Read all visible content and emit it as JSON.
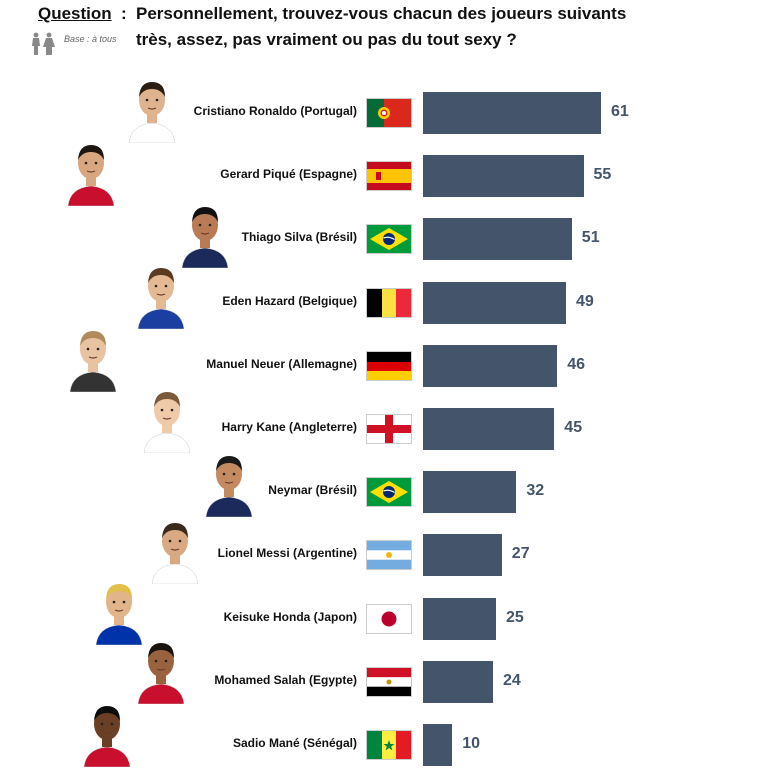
{
  "header": {
    "question_label": "Question",
    "colon": ":",
    "question_line1": "Personnellement, trouvez-vous chacun des joueurs suivants",
    "question_line2": "très, assez, pas vraiment ou pas du tout sexy ?",
    "base_label": "Base : à tous",
    "base_icon": "man-woman-icon"
  },
  "chart_data": {
    "type": "bar",
    "orientation": "horizontal",
    "categories": [
      "Cristiano Ronaldo (Portugal)",
      "Gerard Piqué (Espagne)",
      "Thiago Silva (Brésil)",
      "Eden Hazard (Belgique)",
      "Manuel Neuer (Allemagne)",
      "Harry Kane (Angleterre)",
      "Neymar (Brésil)",
      "Lionel Messi (Argentine)",
      "Keisuke Honda (Japon)",
      "Mohamed Salah (Egypte)",
      "Sadio Mané (Sénégal)"
    ],
    "values": [
      61,
      55,
      51,
      49,
      46,
      45,
      32,
      27,
      25,
      24,
      10
    ],
    "value_labels": [
      "61",
      "55",
      "51",
      "49",
      "46",
      "45",
      "32",
      "27",
      "25",
      "24",
      "10"
    ],
    "flags": [
      "portugal",
      "spain",
      "brazil",
      "belgium",
      "germany",
      "england",
      "brazil",
      "argentina",
      "japan",
      "egypt",
      "senegal"
    ],
    "bar_color": "#44546a",
    "label_color": "#44546a",
    "xlim": [
      0,
      100
    ],
    "grid": false,
    "legend": "none"
  }
}
